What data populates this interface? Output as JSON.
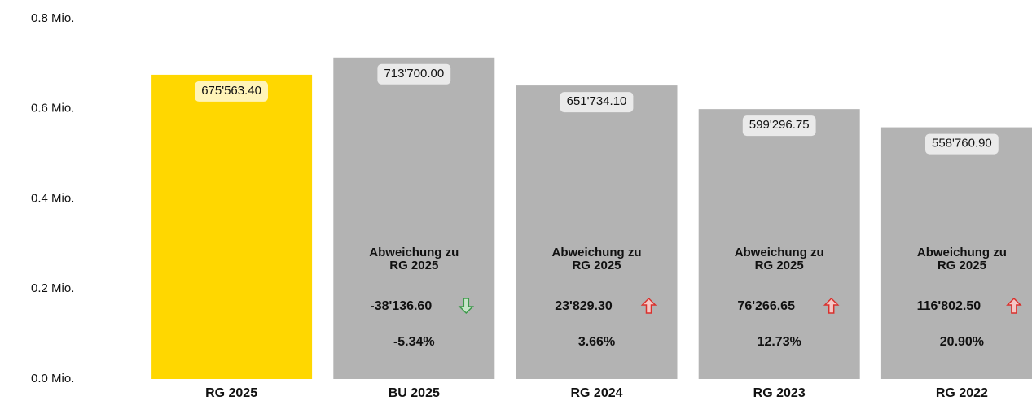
{
  "chart_data": {
    "type": "bar",
    "categories": [
      "RG 2025",
      "BU 2025",
      "RG 2024",
      "RG 2023",
      "RG 2022"
    ],
    "values": [
      675563.4,
      713700,
      651734.1,
      599296.75,
      558760.9
    ],
    "value_labels": [
      "675'563.40",
      "713'700.00",
      "651'734.10",
      "599'296.75",
      "558'760.90"
    ],
    "colors": [
      "#ffd700",
      "#b3b3b3",
      "#b3b3b3",
      "#b3b3b3",
      "#b3b3b3"
    ],
    "ylim": [
      0,
      800000
    ],
    "yticks": [
      {
        "value": 0,
        "label": "0.0 Mio."
      },
      {
        "value": 200000,
        "label": "0.2 Mio."
      },
      {
        "value": 400000,
        "label": "0.4 Mio."
      },
      {
        "value": 600000,
        "label": "0.6 Mio."
      },
      {
        "value": 800000,
        "label": "0.8 Mio."
      }
    ],
    "grid": false,
    "up_color": "#d9302c",
    "down_color": "#3d9a4a",
    "deviations": [
      null,
      {
        "title": [
          "Abweichung zu",
          "RG 2025"
        ],
        "value": -38136.6,
        "value_label": "-38'136.60",
        "percent_label": "-5.34%"
      },
      {
        "title": [
          "Abweichung zu",
          "RG 2025"
        ],
        "value": 23829.3,
        "value_label": "23'829.30",
        "percent_label": "3.66%"
      },
      {
        "title": [
          "Abweichung zu",
          "RG 2025"
        ],
        "value": 76266.65,
        "value_label": "76'266.65",
        "percent_label": "12.73%"
      },
      {
        "title": [
          "Abweichung zu",
          "RG 2025"
        ],
        "value": 116802.5,
        "value_label": "116'802.50",
        "percent_label": "20.90%"
      }
    ]
  }
}
